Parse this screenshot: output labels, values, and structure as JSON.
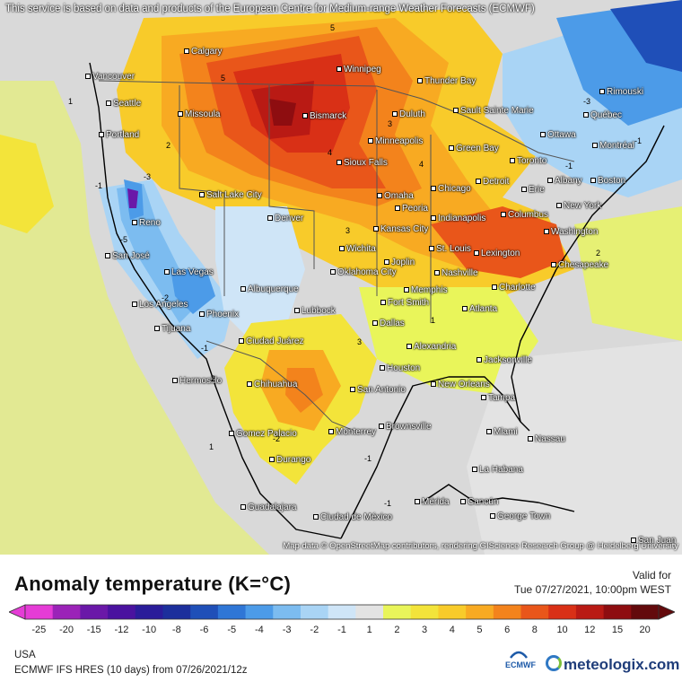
{
  "notice": "This service is based on data and products of the European Centre for Medium-range Weather Forecasts (ECMWF)",
  "map_credit": "Map data © OpenStreetMap contributors, rendering GIScience Research Group @ Heidelberg University",
  "cities": [
    "Vancouver",
    "Calgary",
    "Seattle",
    "Portland",
    "Missoula",
    "Winnipeg",
    "Thunder Bay",
    "Bismarck",
    "Duluth",
    "Sault Sainte Marie",
    "Rimouski",
    "Québec",
    "Ottawa",
    "Montréal",
    "Toronto",
    "Albany",
    "Boston",
    "New York",
    "Erie",
    "Detroit",
    "Green Bay",
    "Minneapolis",
    "Sioux Falls",
    "Chicago",
    "Omaha",
    "Salt Lake City",
    "Reno",
    "Denver",
    "Peoria",
    "Indianapolis",
    "Columbus",
    "Kansas City",
    "Washington",
    "Wichita",
    "St. Louis",
    "Lexington",
    "San José",
    "Las Vegas",
    "Joplin",
    "Nashville",
    "Oklahoma City",
    "Chesapeake",
    "Albuquerque",
    "Charlotte",
    "Memphis",
    "Los Angeles",
    "Fort Smith",
    "Phoenix",
    "Lubbock",
    "Atlanta",
    "Tijuana",
    "Dallas",
    "Ciudad Juárez",
    "Alexandria",
    "Jacksonville",
    "Hermosillo",
    "Houston",
    "Chihuahua",
    "San Antonio",
    "New Orleans",
    "Tampa",
    "Brownsville",
    "Miami",
    "Gomez Palacio",
    "Monterrey",
    "Nassau",
    "Durango",
    "La Habana",
    "Guadalajara",
    "Mérida",
    "Cancún",
    "Ciudad de México",
    "George Town",
    "San Juan"
  ],
  "contour_labels": [
    "5",
    "5",
    "1",
    "2",
    "3",
    "-1",
    "-3",
    "-2",
    "-1",
    "4",
    "-5",
    "-3",
    "-1",
    "-1",
    "2",
    "3",
    "2",
    "1",
    "-2",
    "1",
    "-1",
    "3",
    "4",
    "-1"
  ],
  "legend": {
    "title": "Anomaly temperature (K=°C)",
    "valid_label": "Valid for",
    "valid_time": "Tue 07/27/2021, 10:00pm WEST",
    "ticks": [
      "-25",
      "-20",
      "-15",
      "-12",
      "-10",
      "-8",
      "-6",
      "-5",
      "-4",
      "-3",
      "-2",
      "-1",
      "1",
      "2",
      "3",
      "4",
      "5",
      "6",
      "8",
      "10",
      "12",
      "15",
      "20"
    ],
    "colors": [
      "#e53cd6",
      "#9b23b8",
      "#6a18a8",
      "#4a129f",
      "#2a1c9a",
      "#1c2f9c",
      "#1f4fb8",
      "#2f76d6",
      "#4c9be8",
      "#7cbcf0",
      "#a9d4f5",
      "#cfe5f7",
      "#e3e3e3",
      "#e9f55a",
      "#f3e43a",
      "#f8cb2a",
      "#f8aa22",
      "#f3831c",
      "#e9561a",
      "#d93016",
      "#b91a14",
      "#8e0d10",
      "#630a0c"
    ],
    "region": "USA",
    "model": "ECMWF IFS HRES (10 days) from 07/26/2021/12z",
    "ecmwf": "ECMWF",
    "brand": "meteologix.com"
  }
}
